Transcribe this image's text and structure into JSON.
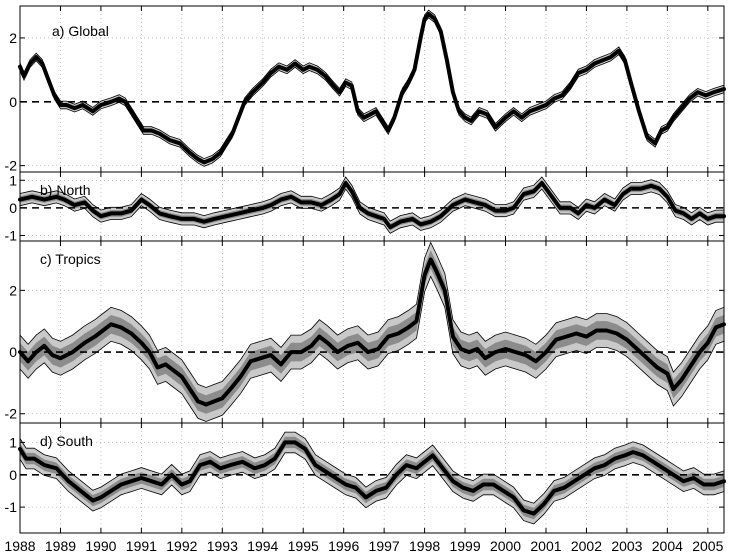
{
  "chart_data": [
    {
      "type": "line",
      "id": "global",
      "title": "a) Global",
      "xlabel": "",
      "ylabel": "",
      "xlim": [
        1988,
        2005.4
      ],
      "ylim": [
        -2.2,
        3.0
      ],
      "yticks": [
        2,
        0,
        -2
      ],
      "ytick_labels": [
        "2",
        "0",
        "-2"
      ],
      "zero_line": "dashed",
      "grid": true,
      "band_width": 0.12,
      "series": [
        {
          "name": "anomaly",
          "x": [
            1988,
            1988.1,
            1988.25,
            1988.4,
            1988.55,
            1988.7,
            1988.85,
            1989.0,
            1989.15,
            1989.35,
            1989.55,
            1989.8,
            1990.0,
            1990.25,
            1990.45,
            1990.6,
            1990.75,
            1990.9,
            1991.05,
            1991.25,
            1991.45,
            1991.7,
            1991.95,
            1992.2,
            1992.4,
            1992.55,
            1992.75,
            1992.95,
            1993.1,
            1993.25,
            1993.4,
            1993.55,
            1993.75,
            1994.0,
            1994.2,
            1994.4,
            1994.6,
            1994.8,
            1995.0,
            1995.15,
            1995.35,
            1995.55,
            1995.75,
            1995.9,
            1996.05,
            1996.2,
            1996.35,
            1996.5,
            1996.65,
            1996.8,
            1996.95,
            1997.1,
            1997.25,
            1997.45,
            1997.6,
            1997.75,
            1997.9,
            1998.0,
            1998.1,
            1998.25,
            1998.4,
            1998.55,
            1998.7,
            1998.85,
            1999.0,
            1999.15,
            1999.35,
            1999.55,
            1999.75,
            2000.0,
            2000.2,
            2000.4,
            2000.6,
            2000.8,
            2001.0,
            2001.2,
            2001.4,
            2001.6,
            2001.8,
            2002.0,
            2002.2,
            2002.4,
            2002.6,
            2002.8,
            2002.95,
            2003.1,
            2003.3,
            2003.5,
            2003.7,
            2003.85,
            2004.0,
            2004.15,
            2004.35,
            2004.55,
            2004.75,
            2004.95,
            2005.15,
            2005.4
          ],
          "y": [
            1.1,
            0.8,
            1.2,
            1.4,
            1.2,
            0.7,
            0.2,
            -0.1,
            -0.1,
            -0.2,
            -0.1,
            -0.3,
            -0.1,
            0.0,
            0.1,
            0.0,
            -0.3,
            -0.6,
            -0.9,
            -0.9,
            -1.0,
            -1.2,
            -1.3,
            -1.6,
            -1.8,
            -1.9,
            -1.8,
            -1.6,
            -1.3,
            -1.0,
            -0.5,
            0.0,
            0.3,
            0.6,
            0.9,
            1.1,
            1.0,
            1.2,
            1.0,
            1.1,
            1.0,
            0.8,
            0.5,
            0.3,
            0.6,
            0.5,
            -0.3,
            -0.5,
            -0.4,
            -0.3,
            -0.6,
            -0.9,
            -0.5,
            0.3,
            0.6,
            1.0,
            2.0,
            2.6,
            2.75,
            2.6,
            2.2,
            1.3,
            0.3,
            -0.3,
            -0.5,
            -0.6,
            -0.3,
            -0.4,
            -0.8,
            -0.5,
            -0.3,
            -0.5,
            -0.3,
            -0.2,
            -0.1,
            0.1,
            0.2,
            0.5,
            0.9,
            1.0,
            1.2,
            1.3,
            1.4,
            1.6,
            1.3,
            0.6,
            -0.3,
            -1.1,
            -1.3,
            -0.9,
            -0.8,
            -0.5,
            -0.2,
            0.1,
            0.3,
            0.2,
            0.3,
            0.4
          ]
        }
      ]
    },
    {
      "type": "line",
      "id": "north",
      "title": "b) North",
      "xlabel": "",
      "ylabel": "",
      "xlim": [
        1988,
        2005.4
      ],
      "ylim": [
        -1.2,
        1.3
      ],
      "yticks": [
        1,
        0,
        -1
      ],
      "ytick_labels": [
        "1",
        "0",
        "-1"
      ],
      "zero_line": "dashed",
      "grid": true,
      "band_width": 0.22,
      "series": [
        {
          "name": "anomaly",
          "x": [
            1988,
            1988.3,
            1988.6,
            1988.9,
            1989.1,
            1989.35,
            1989.6,
            1989.8,
            1990.0,
            1990.25,
            1990.5,
            1990.75,
            1991.0,
            1991.2,
            1991.45,
            1991.7,
            1992.0,
            1992.3,
            1992.55,
            1992.8,
            1993.1,
            1993.4,
            1993.7,
            1994.0,
            1994.2,
            1994.45,
            1994.7,
            1994.95,
            1995.2,
            1995.45,
            1995.7,
            1995.9,
            1996.05,
            1996.2,
            1996.4,
            1996.6,
            1996.8,
            1997.0,
            1997.15,
            1997.4,
            1997.7,
            1997.9,
            1998.15,
            1998.4,
            1998.7,
            1999.0,
            1999.25,
            1999.5,
            1999.75,
            2000.0,
            2000.2,
            2000.45,
            2000.7,
            2000.9,
            2001.1,
            2001.35,
            2001.6,
            2001.8,
            2002.0,
            2002.2,
            2002.45,
            2002.7,
            2002.9,
            2003.1,
            2003.35,
            2003.6,
            2003.8,
            2004.0,
            2004.2,
            2004.4,
            2004.6,
            2004.8,
            2005.0,
            2005.2,
            2005.4
          ],
          "y": [
            0.3,
            0.4,
            0.3,
            0.4,
            0.3,
            0.1,
            0.2,
            -0.1,
            -0.3,
            -0.2,
            -0.2,
            -0.1,
            0.3,
            0.1,
            -0.2,
            -0.3,
            -0.4,
            -0.4,
            -0.5,
            -0.4,
            -0.3,
            -0.2,
            -0.1,
            0.0,
            0.1,
            0.3,
            0.4,
            0.2,
            0.2,
            0.1,
            0.3,
            0.5,
            0.9,
            0.6,
            0.0,
            -0.2,
            -0.3,
            -0.4,
            -0.7,
            -0.5,
            -0.4,
            -0.6,
            -0.5,
            -0.3,
            0.1,
            0.3,
            0.2,
            0.1,
            -0.1,
            -0.1,
            0.0,
            0.5,
            0.6,
            0.9,
            0.5,
            0.0,
            0.0,
            -0.2,
            0.1,
            0.0,
            0.3,
            0.1,
            0.5,
            0.7,
            0.7,
            0.8,
            0.7,
            0.4,
            -0.1,
            -0.2,
            -0.4,
            -0.2,
            -0.4,
            -0.3,
            -0.3
          ]
        }
      ]
    },
    {
      "type": "line",
      "id": "tropics",
      "title": "c) Tropics",
      "xlabel": "",
      "ylabel": "",
      "xlim": [
        1988,
        2005.4
      ],
      "ylim": [
        -2.3,
        3.6
      ],
      "yticks": [
        2,
        0,
        -2
      ],
      "ytick_labels": [
        "2",
        "0",
        "-2"
      ],
      "zero_line": "dashed",
      "grid": true,
      "band_width": 0.55,
      "series": [
        {
          "name": "anomaly",
          "x": [
            1988,
            1988.2,
            1988.4,
            1988.6,
            1988.8,
            1989.0,
            1989.3,
            1989.6,
            1989.85,
            1990.05,
            1990.25,
            1990.5,
            1990.75,
            1991.0,
            1991.2,
            1991.4,
            1991.6,
            1991.8,
            1992.0,
            1992.2,
            1992.4,
            1992.6,
            1992.8,
            1993.0,
            1993.2,
            1993.45,
            1993.7,
            1993.95,
            1994.2,
            1994.45,
            1994.7,
            1994.95,
            1995.2,
            1995.4,
            1995.6,
            1995.85,
            1996.1,
            1996.35,
            1996.6,
            1996.85,
            1997.1,
            1997.35,
            1997.6,
            1997.8,
            1998.0,
            1998.15,
            1998.3,
            1998.5,
            1998.7,
            1998.9,
            1999.1,
            1999.3,
            1999.5,
            1999.75,
            2000.0,
            2000.25,
            2000.5,
            2000.75,
            2001.0,
            2001.25,
            2001.5,
            2001.75,
            2002.0,
            2002.25,
            2002.5,
            2002.75,
            2003.0,
            2003.25,
            2003.5,
            2003.75,
            2004.0,
            2004.15,
            2004.35,
            2004.55,
            2004.8,
            2005.0,
            2005.2,
            2005.4
          ],
          "y": [
            0.0,
            -0.3,
            0.0,
            0.2,
            -0.1,
            -0.2,
            0.0,
            0.3,
            0.5,
            0.7,
            0.9,
            0.8,
            0.6,
            0.3,
            0.0,
            -0.5,
            -0.4,
            -0.6,
            -0.8,
            -1.2,
            -1.6,
            -1.7,
            -1.6,
            -1.5,
            -1.2,
            -0.8,
            -0.3,
            -0.2,
            -0.1,
            -0.4,
            0.0,
            0.0,
            0.2,
            0.5,
            0.3,
            0.0,
            0.2,
            0.3,
            0.0,
            0.1,
            0.5,
            0.6,
            0.8,
            1.0,
            2.5,
            3.0,
            2.6,
            2.0,
            0.5,
            0.1,
            0.0,
            0.1,
            -0.2,
            0.0,
            0.1,
            0.0,
            -0.1,
            -0.3,
            0.0,
            0.4,
            0.5,
            0.6,
            0.5,
            0.7,
            0.7,
            0.6,
            0.4,
            0.1,
            -0.2,
            -0.5,
            -0.7,
            -1.2,
            -0.9,
            -0.5,
            0.0,
            0.3,
            0.8,
            0.9
          ]
        }
      ]
    },
    {
      "type": "line",
      "id": "south",
      "title": "d) South",
      "xlabel": "",
      "ylabel": "",
      "xlim": [
        1988,
        2005.4
      ],
      "ylim": [
        -1.8,
        1.6
      ],
      "yticks": [
        1,
        0,
        -1
      ],
      "ytick_labels": [
        "1",
        "0",
        "-1"
      ],
      "xticks": [
        1988,
        1989,
        1990,
        1991,
        1992,
        1993,
        1994,
        1995,
        1996,
        1997,
        1998,
        1999,
        2000,
        2001,
        2002,
        2003,
        2004,
        2005
      ],
      "xtick_labels": [
        "1988",
        "1989",
        "1990",
        "1991",
        "1992",
        "1993",
        "1994",
        "1995",
        "1996",
        "1997",
        "1998",
        "1999",
        "2000",
        "2001",
        "2002",
        "2003",
        "2004",
        "2005"
      ],
      "zero_line": "dashed",
      "grid": true,
      "band_width": 0.32,
      "series": [
        {
          "name": "anomaly",
          "x": [
            1988,
            1988.15,
            1988.35,
            1988.6,
            1988.9,
            1989.2,
            1989.5,
            1989.8,
            1990.0,
            1990.25,
            1990.5,
            1990.75,
            1991.0,
            1991.25,
            1991.5,
            1991.75,
            1992.0,
            1992.2,
            1992.45,
            1992.7,
            1992.95,
            1993.2,
            1993.5,
            1993.8,
            1994.05,
            1994.3,
            1994.55,
            1994.8,
            1995.05,
            1995.3,
            1995.55,
            1995.8,
            1996.05,
            1996.3,
            1996.55,
            1996.8,
            1997.05,
            1997.3,
            1997.55,
            1997.8,
            1998.0,
            1998.2,
            1998.45,
            1998.7,
            1998.95,
            1999.2,
            1999.45,
            1999.7,
            1999.95,
            2000.2,
            2000.45,
            2000.7,
            2000.95,
            2001.2,
            2001.45,
            2001.7,
            2001.95,
            2002.2,
            2002.45,
            2002.7,
            2002.95,
            2003.15,
            2003.4,
            2003.65,
            2003.9,
            2004.15,
            2004.4,
            2004.65,
            2004.9,
            2005.15,
            2005.4
          ],
          "y": [
            0.8,
            0.5,
            0.5,
            0.3,
            0.2,
            -0.2,
            -0.5,
            -0.8,
            -0.7,
            -0.5,
            -0.3,
            -0.2,
            -0.1,
            -0.2,
            -0.3,
            0.0,
            -0.3,
            -0.2,
            0.3,
            0.4,
            0.2,
            0.3,
            0.4,
            0.2,
            0.3,
            0.5,
            1.0,
            1.0,
            0.8,
            0.3,
            0.1,
            -0.1,
            -0.3,
            -0.4,
            -0.7,
            -0.5,
            -0.4,
            0.0,
            0.3,
            0.2,
            0.4,
            0.6,
            0.2,
            -0.2,
            -0.4,
            -0.5,
            -0.3,
            -0.3,
            -0.5,
            -0.7,
            -1.1,
            -1.2,
            -0.9,
            -0.5,
            -0.4,
            -0.2,
            0.0,
            0.2,
            0.3,
            0.5,
            0.6,
            0.7,
            0.6,
            0.4,
            0.2,
            0.0,
            -0.2,
            -0.1,
            -0.3,
            -0.3,
            -0.2
          ]
        }
      ]
    }
  ]
}
